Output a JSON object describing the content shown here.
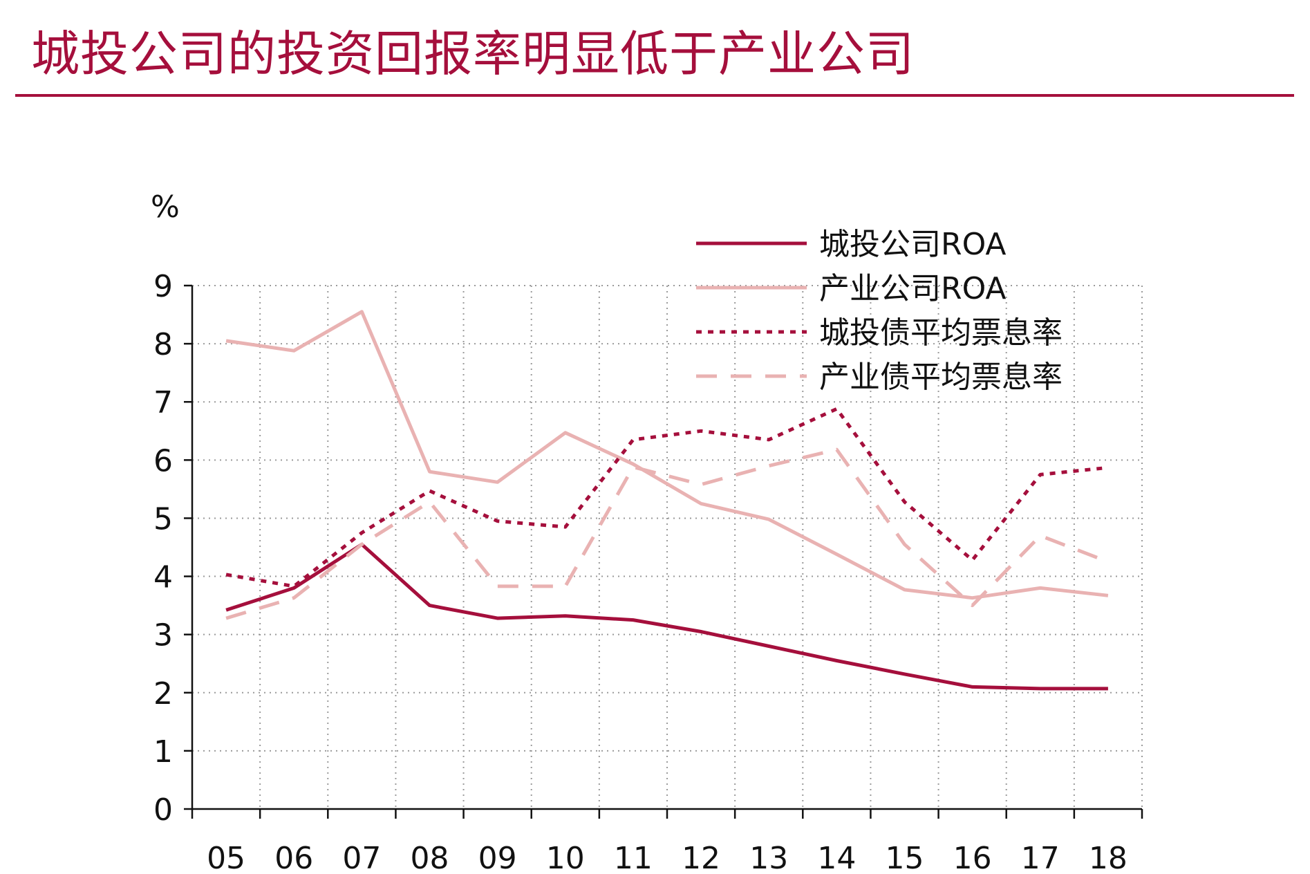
{
  "header": {
    "title": "城投公司的投资回报率明显低于产业公司"
  },
  "chart_data": {
    "type": "line",
    "title": "",
    "xlabel": "",
    "ylabel": "%",
    "ylim": [
      0,
      9
    ],
    "yticks": [
      "0",
      "1",
      "2",
      "3",
      "4",
      "5",
      "6",
      "7",
      "8",
      "9"
    ],
    "categories": [
      "05",
      "06",
      "07",
      "08",
      "09",
      "10",
      "11",
      "12",
      "13",
      "14",
      "15",
      "16",
      "17",
      "18"
    ],
    "grid": true,
    "legend_position": "top-right",
    "series": [
      {
        "name": "城投公司ROA",
        "color": "#a50f3c",
        "style": "solid",
        "values": [
          3.42,
          3.8,
          4.55,
          3.5,
          3.28,
          3.32,
          3.25,
          3.05,
          2.8,
          2.55,
          2.32,
          2.1,
          2.07,
          2.07
        ]
      },
      {
        "name": "产业公司ROA",
        "color": "#e9b2b2",
        "style": "solid",
        "values": [
          8.05,
          7.88,
          8.55,
          5.8,
          5.62,
          6.47,
          5.93,
          5.25,
          4.98,
          4.38,
          3.77,
          3.63,
          3.8,
          3.67
        ]
      },
      {
        "name": "城投债平均票息率",
        "color": "#a50f3c",
        "style": "dotted",
        "values": [
          4.03,
          3.83,
          4.75,
          5.47,
          4.95,
          4.85,
          6.35,
          6.5,
          6.35,
          6.88,
          5.28,
          4.28,
          5.75,
          5.87
        ]
      },
      {
        "name": "产业债平均票息率",
        "color": "#e9b2b2",
        "style": "dashed",
        "values": [
          3.28,
          3.63,
          4.55,
          5.28,
          3.83,
          3.83,
          5.88,
          5.58,
          5.9,
          6.18,
          4.55,
          3.5,
          4.7,
          4.25
        ]
      }
    ]
  }
}
